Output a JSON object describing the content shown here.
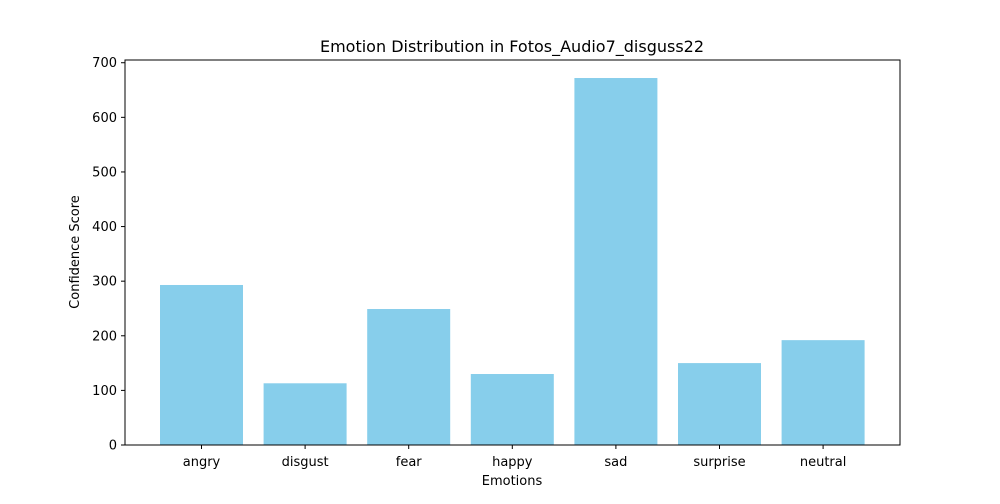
{
  "chart_data": {
    "type": "bar",
    "title": "Emotion Distribution in Fotos_Audio7_disguss22",
    "xlabel": "Emotions",
    "ylabel": "Confidence Score",
    "categories": [
      "angry",
      "disgust",
      "fear",
      "happy",
      "sad",
      "surprise",
      "neutral"
    ],
    "values": [
      293,
      113,
      249,
      130,
      672,
      150,
      192
    ],
    "ylim": [
      0,
      705
    ],
    "yticks": [
      0,
      100,
      200,
      300,
      400,
      500,
      600,
      700
    ],
    "bar_color": "#87ceeb",
    "grid": false,
    "legend": "none"
  }
}
